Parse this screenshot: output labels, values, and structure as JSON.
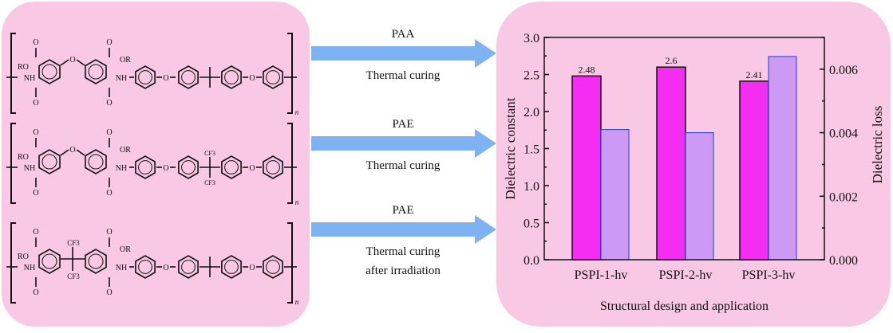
{
  "structures": [
    {
      "labels": {
        "ro": "RO",
        "nh1": "NH",
        "o_top1": "O",
        "o_bot1": "O",
        "bridge": "O",
        "o_top2": "O",
        "or": "OR",
        "o_bot2": "O",
        "nh2": "NH",
        "ether1": "O",
        "ether2": "O",
        "n": "n"
      },
      "bridge_type": "ether",
      "center_type": "isopropylidene"
    },
    {
      "labels": {
        "ro": "RO",
        "nh1": "NH",
        "o_top1": "O",
        "o_bot1": "O",
        "bridge": "O",
        "o_top2": "O",
        "or": "OR",
        "o_bot2": "O",
        "nh2": "NH",
        "ether1": "O",
        "ether2": "O",
        "n": "n",
        "cf3_top": "CF3",
        "cf3_bot": "CF3"
      },
      "bridge_type": "ether",
      "center_type": "hexafluoroisopropylidene"
    },
    {
      "labels": {
        "ro": "RO",
        "nh1": "NH",
        "o_top1": "O",
        "o_bot1": "O",
        "bridge_top": "CF3",
        "bridge_bot": "CF3",
        "o_top2": "O",
        "or": "OR",
        "o_bot2": "O",
        "nh2": "NH",
        "ether1": "O",
        "ether2": "O",
        "n": "n"
      },
      "bridge_type": "hexafluoroisopropylidene",
      "center_type": "isopropylidene"
    }
  ],
  "arrows": [
    {
      "above": "PAA",
      "below": [
        "Thermal curing"
      ]
    },
    {
      "above": "PAE",
      "below": [
        "Thermal curing"
      ]
    },
    {
      "above": "PAE",
      "below": [
        "Thermal curing",
        "after irradiation"
      ]
    }
  ],
  "colors": {
    "panel": "#f8c8e4",
    "arrow": "#7fb2f3",
    "bar_constant": "#f52cf2",
    "bar_loss": "#cc99f4",
    "bar_loss_edge": "#1f3be0"
  },
  "chart_data": {
    "type": "bar",
    "categories": [
      "PSPI-1-hv",
      "PSPI-2-hv",
      "PSPI-3-hv"
    ],
    "series": [
      {
        "name": "Dielectric constant",
        "axis": "left",
        "values": [
          2.48,
          2.6,
          2.41
        ],
        "labels": [
          "2.48",
          "2.6",
          "2.41"
        ]
      },
      {
        "name": "Dielectric loss",
        "axis": "right",
        "values": [
          0.0041,
          0.004,
          0.0064
        ]
      }
    ],
    "xlabel": "Structural design and application",
    "ylabel": "Dielectric constant",
    "y2label": "Dielectric loss",
    "ylim": [
      0,
      3.0
    ],
    "y2lim": [
      0,
      0.007
    ],
    "yticks": [
      "0.0",
      "0.5",
      "1.0",
      "1.5",
      "2.0",
      "2.5",
      "3.0"
    ],
    "y2ticks": [
      "0.000",
      "0.002",
      "0.004",
      "0.006"
    ],
    "grid": false
  }
}
